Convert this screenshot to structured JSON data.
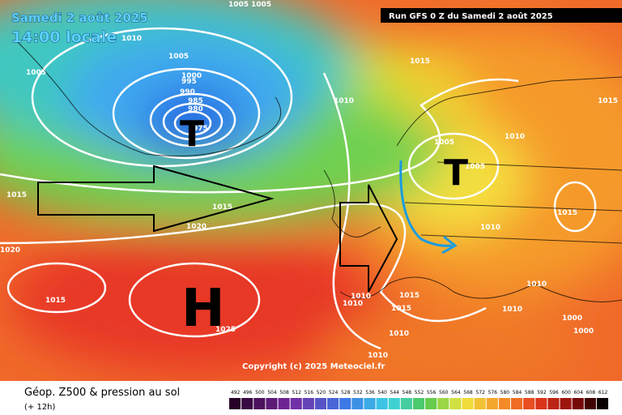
{
  "header": {
    "date": "Samedi 2 août 2025",
    "time": "14:00 locale",
    "run": "Run GFS 0 Z du Samedi 2 août 2025"
  },
  "map": {
    "lows": [
      "T",
      "T"
    ],
    "highs": [
      "H"
    ],
    "pressure_labels": [
      "1005",
      "1005",
      "1010",
      "1005",
      "1005",
      "1000",
      "995",
      "990",
      "985",
      "980",
      "975",
      "1010",
      "1015",
      "1015",
      "1015",
      "1020",
      "1020",
      "1015",
      "1025",
      "1010",
      "1010",
      "1015",
      "1015",
      "1010",
      "1010",
      "1005",
      "1005",
      "1010",
      "1010",
      "1015",
      "1015",
      "1010",
      "1010",
      "1000",
      "1000"
    ],
    "copyright": "Copyright (c) 2025 Meteociel.fr"
  },
  "footer": {
    "title": "Géop. Z500 & pression au sol",
    "subtitle": "(+ 12h)"
  },
  "legend": {
    "labels": [
      "492",
      "496",
      "500",
      "504",
      "508",
      "512",
      "516",
      "520",
      "524",
      "528",
      "532",
      "536",
      "540",
      "544",
      "548",
      "552",
      "556",
      "560",
      "564",
      "568",
      "572",
      "576",
      "580",
      "584",
      "588",
      "592",
      "596",
      "600",
      "604",
      "608",
      "612"
    ]
  }
}
